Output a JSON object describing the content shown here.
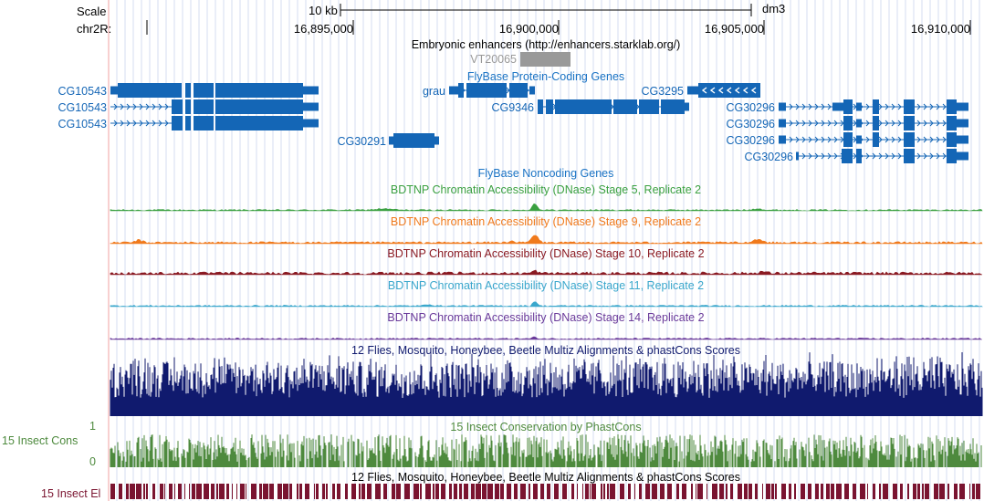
{
  "ruler": {
    "scale_label": "Scale",
    "scale_bar_label": "10 kb",
    "assembly": "dm3",
    "chrom_label": "chr2R:",
    "ticks": [
      "16,895,000",
      "16,900,000",
      "16,905,000",
      "16,910,000"
    ]
  },
  "tracks": {
    "embryonic_enhancers": {
      "title": "Embryonic enhancers (http://enhancers.starklab.org/)",
      "feature": "VT20065"
    },
    "flybase_coding": {
      "title": "FlyBase Protein-Coding Genes",
      "genes": [
        "CG10543",
        "CG10543",
        "CG10543",
        "CG30291",
        "grau",
        "CG9346",
        "CG3295",
        "CG30296",
        "CG30296",
        "CG30296",
        "CG30296"
      ]
    },
    "flybase_noncoding": {
      "title": "FlyBase Noncoding Genes"
    },
    "dnase_stage5": {
      "title": "BDTNP Chromatin Accessibility (DNase) Stage 5, Replicate 2",
      "color": "#3aa040"
    },
    "dnase_stage9": {
      "title": "BDTNP Chromatin Accessibility (DNase) Stage 9, Replicate 2",
      "color": "#f07a1c"
    },
    "dnase_stage10": {
      "title": "BDTNP Chromatin Accessibility (DNase) Stage 10, Replicate 2",
      "color": "#8a1a22"
    },
    "dnase_stage11": {
      "title": "BDTNP Chromatin Accessibility (DNase) Stage 11, Replicate 2",
      "color": "#3aa7cc"
    },
    "dnase_stage14": {
      "title": "BDTNP Chromatin Accessibility (DNase) Stage 14, Replicate 2",
      "color": "#6a3a9a"
    },
    "multiz_conservation": {
      "title": "12 Flies, Mosquito, Honeybee, Beetle Multiz Alignments & phastCons Scores",
      "color": "#101a6e"
    },
    "insect_cons": {
      "title": "15 Insect Conservation by PhastCons",
      "side_label": "15 Insect Cons",
      "axis_max": "1",
      "axis_min": "0",
      "color": "#4e8a3e"
    },
    "insect_elements": {
      "title": "12 Flies, Mosquito, Honeybee, Beetle Multiz Alignments & phastCons Scores",
      "side_label": "15 Insect El",
      "color": "#7a1430"
    }
  },
  "colors": {
    "gene_blue": "#1466b6",
    "title_blue": "#1a73c4",
    "grid": "#d6dcf2",
    "margin_line": "#f2a0a0"
  }
}
